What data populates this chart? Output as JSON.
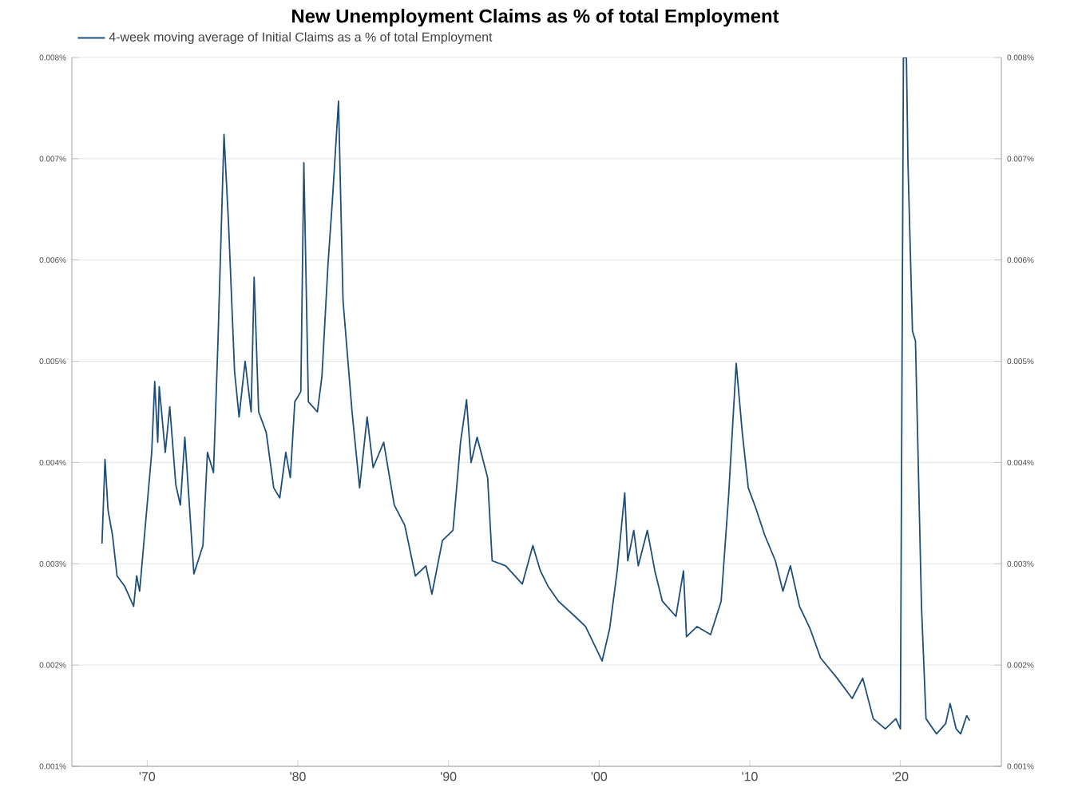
{
  "chart_data": {
    "type": "line",
    "title": "New Unemployment Claims as % of total Employment",
    "x": [
      1967.0,
      1967.2,
      1967.4,
      1967.7,
      1968.0,
      1968.5,
      1969.1,
      1969.3,
      1969.5,
      1970.3,
      1970.5,
      1970.7,
      1970.8,
      1971.2,
      1971.5,
      1971.9,
      1972.2,
      1972.5,
      1972.8,
      1973.1,
      1973.7,
      1974.0,
      1974.4,
      1974.7,
      1975.1,
      1975.4,
      1975.8,
      1976.1,
      1976.5,
      1976.9,
      1977.1,
      1977.4,
      1977.9,
      1978.4,
      1978.8,
      1979.2,
      1979.5,
      1979.8,
      1980.2,
      1980.4,
      1980.7,
      1981.3,
      1981.6,
      1982.0,
      1982.3,
      1982.7,
      1983.0,
      1983.6,
      1984.1,
      1984.6,
      1985.0,
      1985.7,
      1986.4,
      1987.1,
      1987.8,
      1988.5,
      1988.9,
      1989.6,
      1990.3,
      1990.8,
      1991.2,
      1991.5,
      1991.9,
      1992.6,
      1992.9,
      1993.8,
      1994.9,
      1995.6,
      1996.1,
      1996.6,
      1997.3,
      1998.4,
      1999.1,
      2000.2,
      2000.7,
      2001.2,
      2001.7,
      2001.9,
      2002.3,
      2002.6,
      2003.2,
      2003.7,
      2004.2,
      2005.1,
      2005.6,
      2005.8,
      2006.5,
      2007.4,
      2008.1,
      2008.6,
      2009.1,
      2009.5,
      2009.9,
      2010.4,
      2011.0,
      2011.7,
      2012.2,
      2012.7,
      2013.3,
      2014.0,
      2014.7,
      2015.8,
      2016.8,
      2017.5,
      2018.2,
      2019.0,
      2019.7,
      2020.0,
      2020.2,
      2020.4,
      2020.5,
      2020.7,
      2020.8,
      2021.0,
      2021.4,
      2021.7,
      2022.4,
      2023.0,
      2023.3,
      2023.7,
      2024.0,
      2024.4,
      2024.6
    ],
    "series": [
      {
        "name": "4-week moving average of Initial Claims as a % of total Employment",
        "color": "#1f4e79",
        "values": [
          0.0032,
          0.00403,
          0.00353,
          0.00328,
          0.00288,
          0.00278,
          0.00258,
          0.00288,
          0.00273,
          0.0041,
          0.0048,
          0.0042,
          0.00475,
          0.0041,
          0.00455,
          0.00378,
          0.00358,
          0.00425,
          0.00358,
          0.0029,
          0.00318,
          0.0041,
          0.0039,
          0.0052,
          0.00724,
          0.00636,
          0.0049,
          0.00445,
          0.005,
          0.0045,
          0.00583,
          0.0045,
          0.0043,
          0.00375,
          0.00365,
          0.0041,
          0.00385,
          0.0046,
          0.0047,
          0.00696,
          0.0046,
          0.0045,
          0.00485,
          0.00595,
          0.0066,
          0.00757,
          0.0056,
          0.0045,
          0.00375,
          0.00445,
          0.00395,
          0.0042,
          0.00358,
          0.00338,
          0.00288,
          0.00298,
          0.0027,
          0.00323,
          0.00333,
          0.0042,
          0.00462,
          0.004,
          0.00425,
          0.00385,
          0.00303,
          0.00298,
          0.0028,
          0.00318,
          0.00293,
          0.00278,
          0.00263,
          0.00248,
          0.00238,
          0.00204,
          0.00236,
          0.00293,
          0.0037,
          0.00303,
          0.00333,
          0.00298,
          0.00333,
          0.00293,
          0.00263,
          0.00248,
          0.00293,
          0.00228,
          0.00238,
          0.0023,
          0.00263,
          0.00368,
          0.00498,
          0.0043,
          0.00375,
          0.00355,
          0.00328,
          0.00303,
          0.00273,
          0.00298,
          0.00258,
          0.00236,
          0.00207,
          0.00187,
          0.00167,
          0.00187,
          0.00147,
          0.00137,
          0.00147,
          0.00137,
          0.008,
          0.008,
          0.00697,
          0.00585,
          0.0053,
          0.0052,
          0.00258,
          0.00147,
          0.00132,
          0.00142,
          0.00162,
          0.00137,
          0.00132,
          0.0015,
          0.00145
        ]
      }
    ],
    "xlim": [
      1965,
      2026.7
    ],
    "xticks": [
      {
        "value": 1970,
        "label": "'70"
      },
      {
        "value": 1980,
        "label": "'80"
      },
      {
        "value": 1990,
        "label": "'90"
      },
      {
        "value": 2000,
        "label": "'00"
      },
      {
        "value": 2010,
        "label": "'10"
      },
      {
        "value": 2020,
        "label": "'20"
      }
    ],
    "ylim": [
      0.001,
      0.008
    ],
    "yticks": [
      {
        "value": 0.001,
        "label": "0.001%"
      },
      {
        "value": 0.002,
        "label": "0.002%"
      },
      {
        "value": 0.003,
        "label": "0.003%"
      },
      {
        "value": 0.004,
        "label": "0.004%"
      },
      {
        "value": 0.005,
        "label": "0.005%"
      },
      {
        "value": 0.006,
        "label": "0.006%"
      },
      {
        "value": 0.007,
        "label": "0.007%"
      },
      {
        "value": 0.008,
        "label": "0.008%"
      }
    ],
    "y2lim": [
      0.001,
      0.008
    ],
    "y2ticks": [
      {
        "value": 0.001,
        "label": "0.001%"
      },
      {
        "value": 0.002,
        "label": "0.002%"
      },
      {
        "value": 0.003,
        "label": "0.003%"
      },
      {
        "value": 0.004,
        "label": "0.004%"
      },
      {
        "value": 0.005,
        "label": "0.005%"
      },
      {
        "value": 0.006,
        "label": "0.006%"
      },
      {
        "value": 0.007,
        "label": "0.007%"
      },
      {
        "value": 0.008,
        "label": "0.008%"
      }
    ],
    "grid": "y",
    "legend": "top left",
    "marker": "none",
    "line_style": "solid"
  }
}
